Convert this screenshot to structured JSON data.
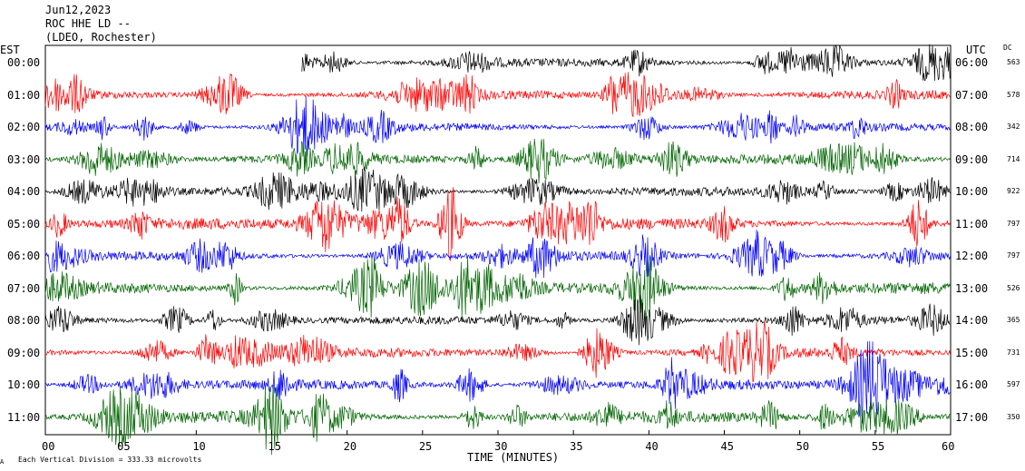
{
  "header": {
    "date": "Jun12,2023",
    "station": "ROC HHE LD --",
    "network": "(LDEO, Rochester)"
  },
  "left_axis_title": "EST",
  "right_axis_title": "UTC",
  "dc_title": "DC",
  "footer_note": "Each Vertical Division =  333.33 microvolts",
  "corner_mark": "A",
  "chart_data": {
    "type": "line",
    "xlabel": "TIME (MINUTES)",
    "x_ticks": [
      "00",
      "05",
      "10",
      "15",
      "20",
      "25",
      "30",
      "35",
      "40",
      "45",
      "50",
      "55",
      "60"
    ],
    "xlim": [
      0,
      60
    ],
    "trace_colors": [
      "#000000",
      "#ff0000",
      "#0000ff",
      "#006400"
    ],
    "rows": [
      {
        "est": "00:00",
        "utc": "06:00",
        "dc": "563",
        "color": "#000000",
        "start_min": 17,
        "amp": 0.55
      },
      {
        "est": "01:00",
        "utc": "07:00",
        "dc": "578",
        "color": "#ff0000",
        "start_min": 0,
        "amp": 0.6
      },
      {
        "est": "02:00",
        "utc": "08:00",
        "dc": "342",
        "color": "#0000ff",
        "start_min": 0,
        "amp": 0.55
      },
      {
        "est": "03:00",
        "utc": "09:00",
        "dc": "714",
        "color": "#006400",
        "start_min": 0,
        "amp": 0.65
      },
      {
        "est": "04:00",
        "utc": "10:00",
        "dc": "922",
        "color": "#000000",
        "start_min": 0,
        "amp": 0.6
      },
      {
        "est": "05:00",
        "utc": "11:00",
        "dc": "797",
        "color": "#ff0000",
        "start_min": 0,
        "amp": 0.75
      },
      {
        "est": "06:00",
        "utc": "12:00",
        "dc": "797",
        "color": "#0000ff",
        "start_min": 0,
        "amp": 0.6
      },
      {
        "est": "07:00",
        "utc": "13:00",
        "dc": "526",
        "color": "#006400",
        "start_min": 0,
        "amp": 0.8
      },
      {
        "est": "08:00",
        "utc": "14:00",
        "dc": "365",
        "color": "#000000",
        "start_min": 0,
        "amp": 0.55
      },
      {
        "est": "09:00",
        "utc": "15:00",
        "dc": "731",
        "color": "#ff0000",
        "start_min": 0,
        "amp": 0.65
      },
      {
        "est": "10:00",
        "utc": "16:00",
        "dc": "597",
        "color": "#0000ff",
        "start_min": 0,
        "amp": 0.65
      },
      {
        "est": "11:00",
        "utc": "17:00",
        "dc": "350",
        "color": "#006400",
        "start_min": 0,
        "amp": 0.8
      }
    ]
  }
}
